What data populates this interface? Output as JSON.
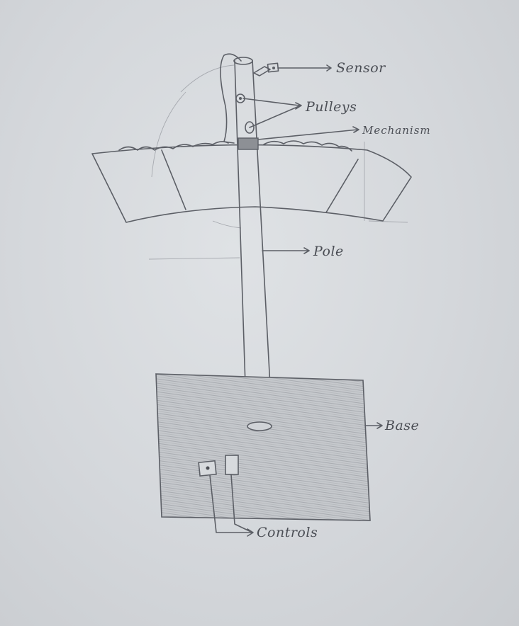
{
  "labels": {
    "sensor": "Sensor",
    "pulleys": "Pulleys",
    "mechanism": "Mechanism",
    "pole": "Pole",
    "base": "Base",
    "controls": "Controls"
  },
  "colors": {
    "paper": "#d8dbdf",
    "pencil": "#5c5f66",
    "shading": "#b8bbbf"
  }
}
